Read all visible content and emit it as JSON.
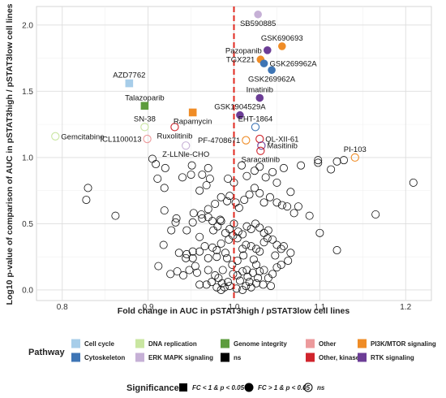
{
  "chart_data": {
    "type": "scatter",
    "xlabel": "Fold change in AUC in pSTAT3high / pSTAT3low cell lines",
    "ylabel": "Log10 p-value of comparison of AUC in pSTAT3high / pSTAT3low cell lines",
    "xlim": [
      0.77,
      1.23
    ],
    "ylim": [
      -0.08,
      2.14
    ],
    "x_ticks": [
      0.8,
      0.9,
      1.0,
      1.1,
      1.2
    ],
    "x_tick_labels": [
      "0.8",
      "0.9",
      "1.0",
      "1.1",
      "1.2"
    ],
    "y_ticks": [
      0.0,
      0.5,
      1.0,
      1.5,
      2.0
    ],
    "y_tick_labels": [
      "0.0",
      "0.5",
      "1.0",
      "1.5",
      "2.0"
    ],
    "grid": true,
    "reference_line": {
      "x": 1.0,
      "color": "#e0281f",
      "style": "dashed"
    },
    "labeled_points": [
      {
        "label": "SB590885",
        "x": 1.028,
        "y": 2.08,
        "pathway": "ERK MAPK signaling",
        "shape": "filled-circle",
        "label_pos": "below"
      },
      {
        "label": "GSK690693",
        "x": 1.056,
        "y": 1.84,
        "pathway": "PI3K/MTOR signaling",
        "shape": "filled-circle",
        "label_pos": "above"
      },
      {
        "label": "Pazopanib",
        "x": 1.039,
        "y": 1.81,
        "pathway": "RTK signaling",
        "shape": "filled-circle",
        "label_pos": "left"
      },
      {
        "label": "TGX221",
        "x": 1.031,
        "y": 1.74,
        "pathway": "PI3K/MTOR signaling",
        "shape": "filled-circle",
        "label_pos": "left"
      },
      {
        "label": "GSK269962A",
        "x": 1.035,
        "y": 1.71,
        "pathway": "Cytoskeleton",
        "shape": "filled-circle",
        "label_pos": "right"
      },
      {
        "label": "GSK269962A",
        "x": 1.044,
        "y": 1.66,
        "pathway": "Cytoskeleton",
        "shape": "filled-circle",
        "label_pos": "below"
      },
      {
        "label": "AZD7762",
        "x": 0.878,
        "y": 1.56,
        "pathway": "Cell cycle",
        "shape": "filled-square",
        "label_pos": "above"
      },
      {
        "label": "Imatinib",
        "x": 1.03,
        "y": 1.45,
        "pathway": "RTK signaling",
        "shape": "filled-circle",
        "label_pos": "above"
      },
      {
        "label": "Talazoparib",
        "x": 0.896,
        "y": 1.39,
        "pathway": "Genome integrity",
        "shape": "filled-square",
        "label_pos": "above"
      },
      {
        "label": "Rapamycin",
        "x": 0.952,
        "y": 1.34,
        "pathway": "PI3K/MTOR signaling",
        "shape": "filled-square",
        "label_pos": "below"
      },
      {
        "label": "GSK1904529A",
        "x": 1.007,
        "y": 1.32,
        "pathway": "RTK signaling",
        "shape": "filled-circle",
        "label_pos": "above"
      },
      {
        "label": "SN-38",
        "x": 0.896,
        "y": 1.23,
        "pathway": "DNA replication",
        "shape": "open-circle",
        "label_pos": "above"
      },
      {
        "label": "EHT-1864",
        "x": 1.025,
        "y": 1.23,
        "pathway": "Cytoskeleton",
        "shape": "open-circle",
        "label_pos": "above"
      },
      {
        "label": "Ruxolitinib",
        "x": 0.931,
        "y": 1.23,
        "pathway": "Other, kinases",
        "shape": "open-circle",
        "label_pos": "below"
      },
      {
        "label": "Gemcitabine",
        "x": 0.792,
        "y": 1.16,
        "pathway": "DNA replication",
        "shape": "open-circle",
        "label_pos": "right"
      },
      {
        "label": "PF-4708671",
        "x": 1.014,
        "y": 1.13,
        "pathway": "PI3K/MTOR signaling",
        "shape": "open-circle",
        "label_pos": "left"
      },
      {
        "label": "QL-XII-61",
        "x": 1.03,
        "y": 1.14,
        "pathway": "Other, kinases",
        "shape": "open-circle",
        "label_pos": "right"
      },
      {
        "label": "ICL1100013",
        "x": 0.899,
        "y": 1.14,
        "pathway": "Other",
        "shape": "open-circle",
        "label_pos": "left"
      },
      {
        "label": "Z-LLNle-CHO",
        "x": 0.944,
        "y": 1.09,
        "pathway": "ERK MAPK signaling",
        "shape": "open-circle",
        "label_pos": "below"
      },
      {
        "label": "Masitinib",
        "x": 1.032,
        "y": 1.09,
        "pathway": "RTK signaling",
        "shape": "open-circle",
        "label_pos": "right"
      },
      {
        "label": "Saracatinib",
        "x": 1.031,
        "y": 1.05,
        "pathway": "Other, kinases",
        "shape": "open-circle",
        "label_pos": "below"
      },
      {
        "label": "PI-103",
        "x": 1.141,
        "y": 1.0,
        "pathway": "PI3K/MTOR signaling",
        "shape": "open-circle",
        "label_pos": "above"
      }
    ],
    "ns_points": [
      [
        0.83,
        0.77
      ],
      [
        0.828,
        0.68
      ],
      [
        0.862,
        0.56
      ],
      [
        0.905,
        0.99
      ],
      [
        0.909,
        0.95
      ],
      [
        0.92,
        0.92
      ],
      [
        0.911,
        0.84
      ],
      [
        0.919,
        0.77
      ],
      [
        0.919,
        0.6
      ],
      [
        0.933,
        0.54
      ],
      [
        0.932,
        0.51
      ],
      [
        0.951,
        0.94
      ],
      [
        0.95,
        0.87
      ],
      [
        0.96,
        0.75
      ],
      [
        0.952,
        0.51
      ],
      [
        0.927,
        0.45
      ],
      [
        0.945,
        0.45
      ],
      [
        0.97,
        0.92
      ],
      [
        0.968,
        0.79
      ],
      [
        0.97,
        0.61
      ],
      [
        0.953,
        0.58
      ],
      [
        0.962,
        0.57
      ],
      [
        0.963,
        0.54
      ],
      [
        0.97,
        0.55
      ],
      [
        0.975,
        0.52
      ],
      [
        0.984,
        0.53
      ],
      [
        0.918,
        0.34
      ],
      [
        0.936,
        0.28
      ],
      [
        0.945,
        0.27
      ],
      [
        0.944,
        0.24
      ],
      [
        0.952,
        0.24
      ],
      [
        0.952,
        0.29
      ],
      [
        0.96,
        0.29
      ],
      [
        0.97,
        0.24
      ],
      [
        0.98,
        0.25
      ],
      [
        0.957,
        0.13
      ],
      [
        0.97,
        0.15
      ],
      [
        0.978,
        0.11
      ],
      [
        0.982,
        0.09
      ],
      [
        0.986,
        0.05
      ],
      [
        0.993,
        0.06
      ],
      [
        0.912,
        0.18
      ],
      [
        0.926,
        0.12
      ],
      [
        0.934,
        0.14
      ],
      [
        0.941,
        0.11
      ],
      [
        0.948,
        0.15
      ],
      [
        0.955,
        0.18
      ],
      [
        0.96,
        0.04
      ],
      [
        0.968,
        0.04
      ],
      [
        0.974,
        0.06
      ],
      [
        0.98,
        0.02
      ],
      [
        0.985,
        0.0
      ],
      [
        0.989,
        0.02
      ],
      [
        0.995,
        0.03
      ],
      [
        1.003,
        0.01
      ],
      [
        1.01,
        0.0
      ],
      [
        1.014,
        0.03
      ],
      [
        1.018,
        0.06
      ],
      [
        1.02,
        0.02
      ],
      [
        1.026,
        0.05
      ],
      [
        1.004,
        0.11
      ],
      [
        1.01,
        0.14
      ],
      [
        1.015,
        0.15
      ],
      [
        1.022,
        0.13
      ],
      [
        1.026,
        0.19
      ],
      [
        1.03,
        0.14
      ],
      [
        1.035,
        0.15
      ],
      [
        1.04,
        0.09
      ],
      [
        1.045,
        0.12
      ],
      [
        1.05,
        0.17
      ],
      [
        1.055,
        0.19
      ],
      [
        0.975,
        0.32
      ],
      [
        0.98,
        0.3
      ],
      [
        0.985,
        0.35
      ],
      [
        0.99,
        0.28
      ],
      [
        0.994,
        0.38
      ],
      [
        0.999,
        0.41
      ],
      [
        1.004,
        0.39
      ],
      [
        1.01,
        0.31
      ],
      [
        1.014,
        0.34
      ],
      [
        1.02,
        0.33
      ],
      [
        1.026,
        0.31
      ],
      [
        1.03,
        0.29
      ],
      [
        1.035,
        0.36
      ],
      [
        1.039,
        0.39
      ],
      [
        1.045,
        0.38
      ],
      [
        1.05,
        0.34
      ],
      [
        1.055,
        0.31
      ],
      [
        1.058,
        0.33
      ],
      [
        0.976,
        0.45
      ],
      [
        0.981,
        0.48
      ],
      [
        0.985,
        0.52
      ],
      [
        0.99,
        0.43
      ],
      [
        0.995,
        0.46
      ],
      [
        1.0,
        0.5
      ],
      [
        1.005,
        0.44
      ],
      [
        1.01,
        0.42
      ],
      [
        1.015,
        0.48
      ],
      [
        1.02,
        0.46
      ],
      [
        1.025,
        0.5
      ],
      [
        1.03,
        0.47
      ],
      [
        1.035,
        0.43
      ],
      [
        1.04,
        0.45
      ],
      [
        0.978,
        0.65
      ],
      [
        0.985,
        0.7
      ],
      [
        0.992,
        0.67
      ],
      [
        0.995,
        0.71
      ],
      [
        1.002,
        0.66
      ],
      [
        1.006,
        0.62
      ],
      [
        1.012,
        0.68
      ],
      [
        1.018,
        0.72
      ],
      [
        1.024,
        0.77
      ],
      [
        1.03,
        0.73
      ],
      [
        1.035,
        0.66
      ],
      [
        1.042,
        0.7
      ],
      [
        1.05,
        0.66
      ],
      [
        1.056,
        0.64
      ],
      [
        1.062,
        0.63
      ],
      [
        1.07,
        0.58
      ],
      [
        1.075,
        0.63
      ],
      [
        1.088,
        0.56
      ],
      [
        0.993,
        0.84
      ],
      [
        1.0,
        0.81
      ],
      [
        1.009,
        0.94
      ],
      [
        1.015,
        0.86
      ],
      [
        1.024,
        0.9
      ],
      [
        1.03,
        0.93
      ],
      [
        1.037,
        0.85
      ],
      [
        1.045,
        0.89
      ],
      [
        1.05,
        0.81
      ],
      [
        1.058,
        0.92
      ],
      [
        1.066,
        0.74
      ],
      [
        1.078,
        0.94
      ],
      [
        1.098,
        0.98
      ],
      [
        1.098,
        0.96
      ],
      [
        1.113,
        0.91
      ],
      [
        1.12,
        0.97
      ],
      [
        1.128,
        0.98
      ],
      [
        1.1,
        0.43
      ],
      [
        1.12,
        0.3
      ],
      [
        1.209,
        0.81
      ],
      [
        1.165,
        0.57
      ],
      [
        0.963,
        0.87
      ],
      [
        0.972,
        0.84
      ],
      [
        0.94,
        0.85
      ],
      [
        1.004,
        0.22
      ],
      [
        0.998,
        0.19
      ],
      [
        1.011,
        0.26
      ],
      [
        0.987,
        0.15
      ],
      [
        0.992,
        0.24
      ],
      [
        0.999,
        0.12
      ],
      [
        1.007,
        0.07
      ],
      [
        1.016,
        0.1
      ],
      [
        1.023,
        0.23
      ],
      [
        1.028,
        0.09
      ],
      [
        1.034,
        0.04
      ],
      [
        1.043,
        0.03
      ],
      [
        0.966,
        0.33
      ],
      [
        0.96,
        0.4
      ],
      [
        1.048,
        0.26
      ],
      [
        1.063,
        0.22
      ],
      [
        1.066,
        0.28
      ]
    ],
    "legend": {
      "pathway_title": "Pathway",
      "pathways": [
        {
          "name": "Cell cycle",
          "color": "#a7cde9"
        },
        {
          "name": "Cytoskeleton",
          "color": "#3e75b5"
        },
        {
          "name": "DNA replication",
          "color": "#c9e6a1"
        },
        {
          "name": "ERK MAPK signaling",
          "color": "#c6b0d6"
        },
        {
          "name": "Genome integrity",
          "color": "#5d9c3d"
        },
        {
          "name": "ns",
          "color": "#000000"
        },
        {
          "name": "Other",
          "color": "#ec9a9c"
        },
        {
          "name": "Other, kinases",
          "color": "#d0242c"
        },
        {
          "name": "PI3K/MTOR signaling",
          "color": "#ef8c26"
        },
        {
          "name": "RTK signaling",
          "color": "#6c3d96"
        }
      ],
      "significance_title": "Significance",
      "significance": [
        {
          "label": "FC < 1 & p < 0.05",
          "shape": "filled-square"
        },
        {
          "label": "FC > 1 & p < 0.05",
          "shape": "filled-circle"
        },
        {
          "label": "ns",
          "shape": "open-circle"
        }
      ]
    }
  }
}
